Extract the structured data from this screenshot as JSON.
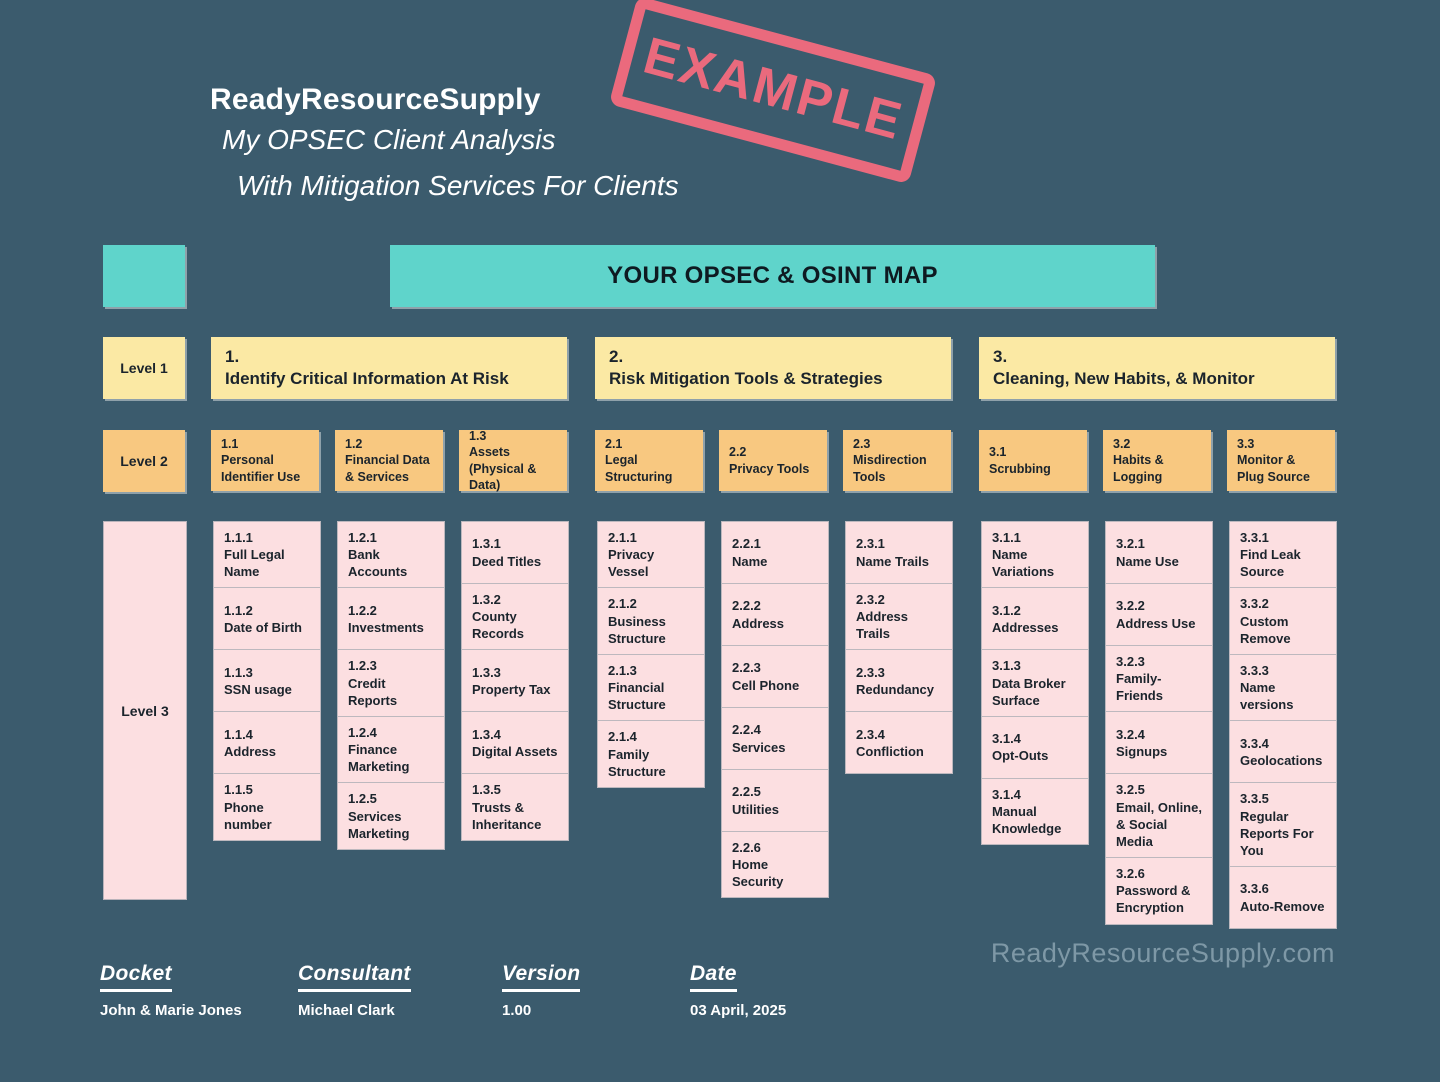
{
  "page": {
    "background": "#3b5b6d"
  },
  "colors": {
    "teal": "#5fd4cb",
    "yellow": "#fbe9a4",
    "orange": "#f8c880",
    "pink": "#fcdfe1",
    "stamp_red": "#f26b7e",
    "text_dark": "#1b242c"
  },
  "header": {
    "brand": "ReadyResourceSupply",
    "subtitle1": "My OPSEC Client Analysis",
    "subtitle2": "With Mitigation Services For Clients",
    "stamp": "EXAMPLE",
    "map_title": "YOUR OPSEC & OSINT MAP"
  },
  "levels": {
    "level1": "Level 1",
    "level2": "Level 2",
    "level3": "Level 3"
  },
  "groups": [
    {
      "number": "1.",
      "title": "Identify Critical Information At Risk",
      "columns": [
        {
          "code": "1.1",
          "title": "Personal Identifier Use",
          "items": [
            {
              "code": "1.1.1",
              "label": "Full Legal Name"
            },
            {
              "code": "1.1.2",
              "label": "Date of Birth"
            },
            {
              "code": "1.1.3",
              "label": "SSN usage"
            },
            {
              "code": "1.1.4",
              "label": "Address"
            },
            {
              "code": "1.1.5",
              "label": "Phone number"
            }
          ]
        },
        {
          "code": "1.2",
          "title": "Financial Data & Services",
          "items": [
            {
              "code": "1.2.1",
              "label": "Bank Accounts"
            },
            {
              "code": "1.2.2",
              "label": "Investments"
            },
            {
              "code": "1.2.3",
              "label": "Credit Reports"
            },
            {
              "code": "1.2.4",
              "label": "Finance Marketing"
            },
            {
              "code": "1.2.5",
              "label": "Services Marketing"
            }
          ]
        },
        {
          "code": "1.3",
          "title": "Assets (Physical & Data)",
          "items": [
            {
              "code": "1.3.1",
              "label": "Deed Titles"
            },
            {
              "code": "1.3.2",
              "label": "County Records"
            },
            {
              "code": "1.3.3",
              "label": "Property Tax"
            },
            {
              "code": "1.3.4",
              "label": "Digital Assets"
            },
            {
              "code": "1.3.5",
              "label": "Trusts & Inheritance"
            }
          ]
        }
      ]
    },
    {
      "number": "2.",
      "title": "Risk Mitigation Tools & Strategies",
      "columns": [
        {
          "code": "2.1",
          "title": "Legal Structuring",
          "items": [
            {
              "code": "2.1.1",
              "label": "Privacy Vessel"
            },
            {
              "code": "2.1.2",
              "label": "Business Structure"
            },
            {
              "code": "2.1.3",
              "label": "Financial Structure"
            },
            {
              "code": "2.1.4",
              "label": "Family Structure"
            }
          ]
        },
        {
          "code": "2.2",
          "title": "Privacy Tools",
          "items": [
            {
              "code": "2.2.1",
              "label": "Name"
            },
            {
              "code": "2.2.2",
              "label": "Address"
            },
            {
              "code": "2.2.3",
              "label": "Cell Phone"
            },
            {
              "code": "2.2.4",
              "label": "Services"
            },
            {
              "code": "2.2.5",
              "label": "Utilities"
            },
            {
              "code": "2.2.6",
              "label": "Home Security"
            }
          ]
        },
        {
          "code": "2.3",
          "title": "Misdirection Tools",
          "items": [
            {
              "code": "2.3.1",
              "label": "Name Trails"
            },
            {
              "code": "2.3.2",
              "label": "Address Trails"
            },
            {
              "code": "2.3.3",
              "label": "Redundancy"
            },
            {
              "code": "2.3.4",
              "label": "Confliction"
            }
          ]
        }
      ]
    },
    {
      "number": "3.",
      "title": "Cleaning, New Habits, & Monitor",
      "columns": [
        {
          "code": "3.1",
          "title": "Scrubbing",
          "items": [
            {
              "code": "3.1.1",
              "label": "Name Variations"
            },
            {
              "code": "3.1.2",
              "label": "Addresses"
            },
            {
              "code": "3.1.3",
              "label": "Data Broker Surface"
            },
            {
              "code": "3.1.4",
              "label": "Opt-Outs"
            },
            {
              "code": "3.1.4",
              "label": "Manual Knowledge"
            }
          ]
        },
        {
          "code": "3.2",
          "title": "Habits & Logging",
          "items": [
            {
              "code": "3.2.1",
              "label": "Name Use"
            },
            {
              "code": "3.2.2",
              "label": "Address Use"
            },
            {
              "code": "3.2.3",
              "label": "Family-Friends"
            },
            {
              "code": "3.2.4",
              "label": "Signups"
            },
            {
              "code": "3.2.5",
              "label": "Email, Online, & Social Media"
            },
            {
              "code": "3.2.6",
              "label": "Password & Encryption"
            }
          ]
        },
        {
          "code": "3.3",
          "title": "Monitor & Plug Source",
          "items": [
            {
              "code": "3.3.1",
              "label": "Find Leak Source"
            },
            {
              "code": "3.3.2",
              "label": "Custom Remove"
            },
            {
              "code": "3.3.3",
              "label": "Name versions"
            },
            {
              "code": "3.3.4",
              "label": "Geolocations"
            },
            {
              "code": "3.3.5",
              "label": "Regular Reports For You"
            },
            {
              "code": "3.3.6",
              "label": "Auto-Remove"
            }
          ]
        }
      ]
    }
  ],
  "footer": {
    "fields": [
      {
        "label": "Docket",
        "value": "John & Marie Jones"
      },
      {
        "label": "Consultant",
        "value": "Michael Clark"
      },
      {
        "label": "Version",
        "value": "1.00"
      },
      {
        "label": "Date",
        "value": "03 April, 2025"
      }
    ],
    "field_lefts": [
      100,
      298,
      502,
      690
    ],
    "watermark": "ReadyResourceSupply.com"
  }
}
